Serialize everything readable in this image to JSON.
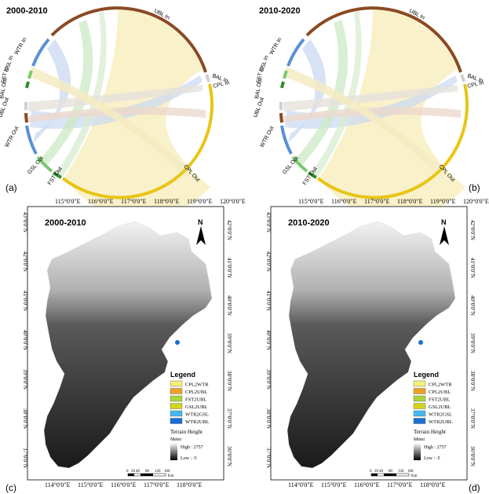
{
  "figure": {
    "panels_top": [
      {
        "title": "2000-2010",
        "letter": "(a)",
        "segments": {
          "ubl_in": "UBL In",
          "bal_in": "BAL In",
          "cpl_in": "CPL In",
          "cpl_out": "CPL Out",
          "fst_out": "FST Out",
          "gsl_out": "GSL Out",
          "wtr_out": "WTR Out",
          "ubl_out": "UBL Out",
          "bal_out": "BAL Out",
          "fst_in": "FST In",
          "gsl_in": "GSL In",
          "wtr_in": "WTR In"
        }
      },
      {
        "title": "2010-2020",
        "letter": "(b)",
        "segments": {
          "ubl_in": "UBL In",
          "bal_in": "BAL In",
          "cpl_in": "CPL In",
          "cpl_out": "CPL Out",
          "fst_out": "FST Out",
          "gsl_out": "GSL Out",
          "wtr_out": "WTR Out",
          "ubl_out": "UBL Out",
          "bal_out": "BAL Out",
          "fst_in": "FST In",
          "gsl_in": "GSL In",
          "wtr_in": "WTR In"
        }
      }
    ],
    "panels_bottom": [
      {
        "title": "2000-2010",
        "letter": "(c)",
        "legend_items": [
          "CPL2WTR",
          "CPL2UBL",
          "FST2UBL",
          "GSL2UBL",
          "WTR2GSL",
          "WTR2UBL"
        ]
      },
      {
        "title": "2010-2020",
        "letter": "(d)",
        "legend_items": [
          "CPL2WTR",
          "CPL2UBL",
          "FST2UBL",
          "GSL2UBL",
          "WTR2GSL",
          "WTR2UBL"
        ]
      }
    ],
    "legend": {
      "title": "Legend",
      "terrain": "Terrain Height",
      "unit": "Meter",
      "high": "High : 2757",
      "low": "Low : -5",
      "colors": [
        "#f5f07a",
        "#f0a020",
        "#a9d63a",
        "#d4d41e",
        "#46b8ee",
        "#1a6fd6"
      ]
    },
    "north": "N",
    "scale_ticks": [
      "0",
      "20",
      "40",
      "80",
      "120",
      "160"
    ],
    "scale_unit": "Km",
    "top_lon": [
      "115°0'0\"E",
      "116°0'0\"E",
      "117°0'0\"E",
      "118°0'0\"E",
      "119°0'0\"E",
      "120°0'0\"E"
    ],
    "bottom_lon": [
      "114°0'0\"E",
      "115°0'0\"E",
      "116°0'0\"E",
      "117°0'0\"E",
      "118°0'0\"E"
    ],
    "left_lat": [
      "43°0'0\"N",
      "42°0'0\"N",
      "41°0'0\"N",
      "40°0'0\"N",
      "39°0'0\"N",
      "38°0'0\"N",
      "37°0'0\"N"
    ],
    "right_lat": [
      "42°0'0\"N",
      "41°0'0\"N",
      "40°0'0\"N",
      "39°0'0\"N",
      "38°0'0\"N",
      "37°0'0\"N",
      "36°0'0\"N"
    ],
    "colors": {
      "ubl": "#8b4a22",
      "cpl": "#e8c516",
      "bal": "#d9d9d9",
      "fst": "#2e8b2e",
      "gsl": "#7bc96f",
      "wtr": "#5b8fd6",
      "ubl_chord": "#f8eec0",
      "wtr_chord": "#c9d8f2",
      "gsl_chord": "#cbe9c4",
      "bal_chord": "#e6e1dc",
      "fst_chord": "#d8ecd0"
    }
  }
}
